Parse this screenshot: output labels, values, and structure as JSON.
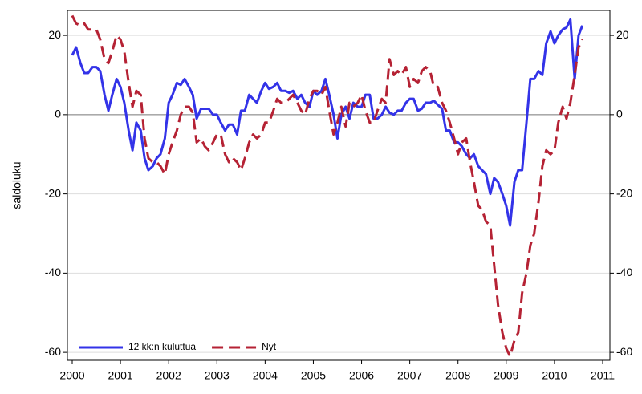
{
  "chart_data": {
    "type": "line",
    "ylabel": "saldoluku",
    "x": [
      2000,
      2000.08,
      2000.17,
      2000.25,
      2000.33,
      2000.42,
      2000.5,
      2000.58,
      2000.67,
      2000.75,
      2000.83,
      2000.92,
      2001,
      2001.08,
      2001.17,
      2001.25,
      2001.33,
      2001.42,
      2001.5,
      2001.58,
      2001.67,
      2001.75,
      2001.83,
      2001.92,
      2002,
      2002.08,
      2002.17,
      2002.25,
      2002.33,
      2002.42,
      2002.5,
      2002.58,
      2002.67,
      2002.75,
      2002.83,
      2002.92,
      2003,
      2003.08,
      2003.17,
      2003.25,
      2003.33,
      2003.42,
      2003.5,
      2003.58,
      2003.67,
      2003.75,
      2003.83,
      2003.92,
      2004,
      2004.08,
      2004.17,
      2004.25,
      2004.33,
      2004.42,
      2004.5,
      2004.58,
      2004.67,
      2004.75,
      2004.83,
      2004.92,
      2005,
      2005.08,
      2005.17,
      2005.25,
      2005.33,
      2005.42,
      2005.5,
      2005.58,
      2005.67,
      2005.75,
      2005.83,
      2005.92,
      2006,
      2006.08,
      2006.17,
      2006.25,
      2006.33,
      2006.42,
      2006.5,
      2006.58,
      2006.67,
      2006.75,
      2006.83,
      2006.92,
      2007,
      2007.08,
      2007.17,
      2007.25,
      2007.33,
      2007.42,
      2007.5,
      2007.58,
      2007.67,
      2007.75,
      2007.83,
      2007.92,
      2008,
      2008.08,
      2008.17,
      2008.25,
      2008.33,
      2008.42,
      2008.5,
      2008.58,
      2008.67,
      2008.75,
      2008.83,
      2008.92,
      2009,
      2009.08,
      2009.17,
      2009.25,
      2009.33,
      2009.42,
      2009.5,
      2009.58,
      2009.67,
      2009.75,
      2009.83,
      2009.92,
      2010,
      2010.08,
      2010.17,
      2010.25,
      2010.33,
      2010.42,
      2010.5,
      2010.58
    ],
    "series": [
      {
        "name": "12 kk:n kuluttua",
        "color": "#3333e8",
        "linestyle": "solid",
        "values": [
          15,
          17,
          13,
          10.5,
          10.5,
          12,
          12,
          11,
          5,
          1,
          5,
          9,
          7,
          3,
          -4,
          -9,
          -2,
          -4,
          -11,
          -14,
          -13,
          -11,
          -10,
          -6,
          3,
          5,
          8,
          7.5,
          9,
          7,
          5,
          -1,
          1.5,
          1.5,
          1.5,
          0,
          0,
          -2,
          -4,
          -2.5,
          -2.5,
          -5,
          1,
          1,
          5,
          4,
          3,
          6,
          8,
          6.5,
          7,
          8,
          6,
          6,
          5.5,
          6,
          4,
          5,
          3,
          2,
          6,
          5,
          6,
          9,
          5,
          0,
          -6,
          0,
          2,
          -1,
          3,
          2,
          2,
          5,
          5,
          -1,
          -1,
          0,
          2,
          0.5,
          0,
          1,
          1,
          3,
          4,
          4,
          1,
          1.5,
          3,
          3,
          3.5,
          2.5,
          1.5,
          -4,
          -4,
          -7,
          -7,
          -8,
          -10,
          -11,
          -10,
          -13,
          -14,
          -15,
          -20,
          -16,
          -17,
          -20,
          -23,
          -28,
          -17,
          -14,
          -14,
          -2,
          9,
          9,
          11,
          10,
          18,
          21,
          18,
          20,
          21.5,
          22,
          24,
          9,
          20,
          22.5
        ]
      },
      {
        "name": "Nyt",
        "color": "#b52234",
        "linestyle": "dashed",
        "values": [
          25,
          23,
          22.5,
          23,
          21.5,
          21.5,
          21.5,
          19,
          14,
          13,
          16,
          20,
          19,
          16,
          8,
          2,
          6,
          5,
          -6,
          -11,
          -12,
          -12,
          -13,
          -15,
          -10,
          -7,
          -4,
          0,
          2,
          2,
          0.5,
          -7,
          -6,
          -8,
          -9,
          -7,
          -5,
          -5,
          -10,
          -12,
          -11,
          -12,
          -14,
          -11,
          -7,
          -5,
          -6,
          -5,
          -2,
          -2,
          1,
          4,
          3,
          3,
          4,
          5,
          3,
          1,
          0,
          4,
          6,
          6,
          5,
          7,
          1,
          -5,
          -2,
          2,
          -3,
          3,
          2,
          3,
          5,
          1,
          -2,
          -2,
          1,
          4,
          3,
          14,
          10,
          11,
          10,
          12,
          7,
          9,
          8,
          11,
          12,
          11,
          7,
          7,
          3,
          1,
          -2,
          -6,
          -10,
          -7,
          -6,
          -12,
          -17,
          -23,
          -24,
          -27,
          -28,
          -38,
          -48,
          -55,
          -59,
          -61,
          -57,
          -55,
          -45,
          -40,
          -33,
          -30,
          -22,
          -13,
          -9,
          -10,
          -9,
          -2,
          2,
          -1,
          3,
          10,
          17,
          19
        ]
      }
    ],
    "xlim": [
      1999.9,
      2011.15
    ],
    "xticks": [
      2000,
      2001,
      2002,
      2003,
      2004,
      2005,
      2006,
      2007,
      2008,
      2009,
      2010,
      2011
    ],
    "ylim": [
      -62,
      26.3
    ],
    "yticks": [
      -60,
      -40,
      -20,
      0,
      20
    ],
    "y2lim": [
      -62,
      26.3
    ],
    "y2ticks": [
      -60,
      -40,
      -20,
      0,
      20
    ],
    "grid": true,
    "zero_line": true,
    "legend": "lower left"
  }
}
